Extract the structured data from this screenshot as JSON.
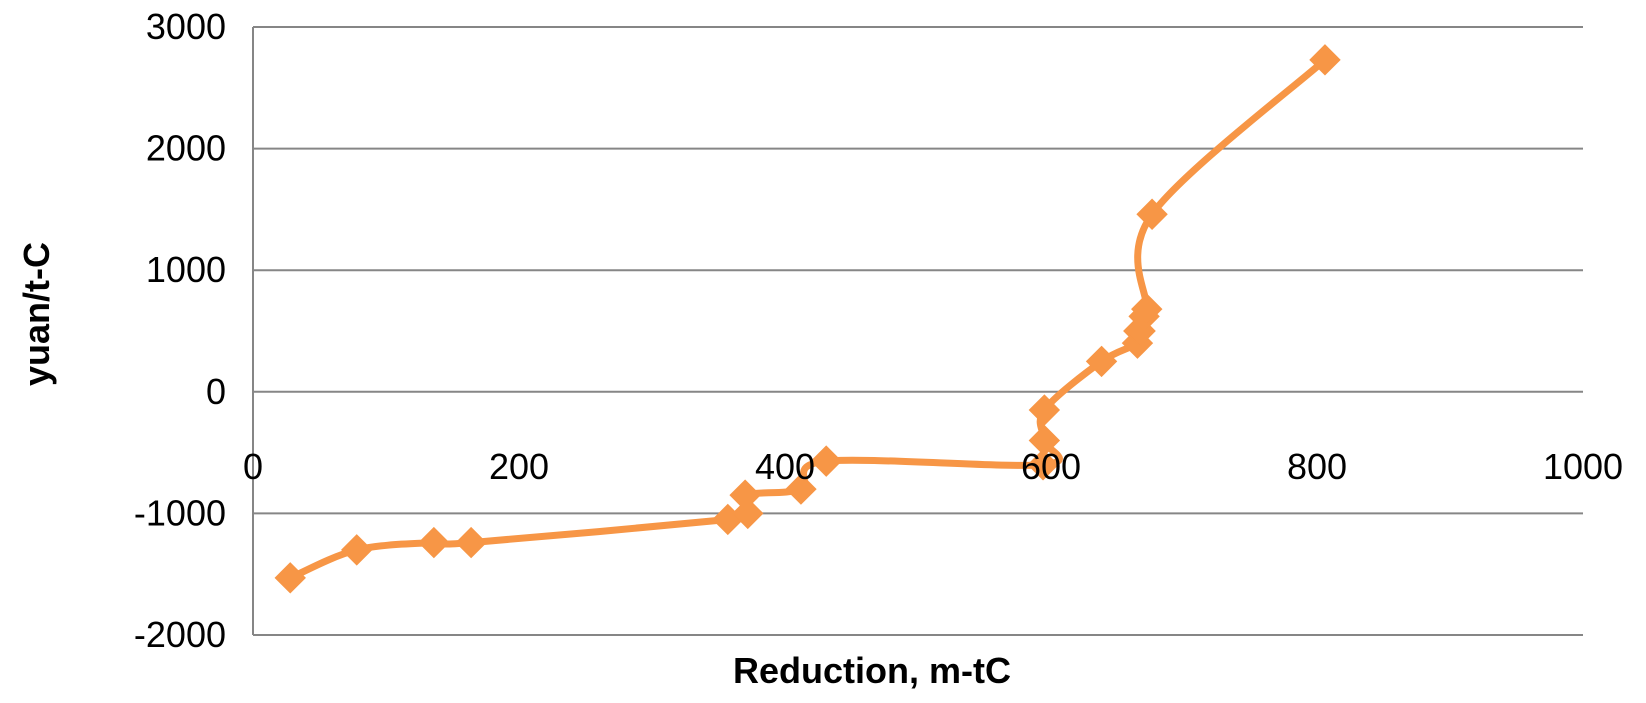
{
  "chart_data": {
    "type": "scatter",
    "title": "",
    "xlabel": "Reduction, m-tC",
    "ylabel": "yuan/t-C",
    "xlim": [
      0,
      1000
    ],
    "ylim": [
      -2000,
      3000
    ],
    "x_ticks": [
      "0",
      "200",
      "400",
      "600",
      "800",
      "1000"
    ],
    "y_ticks": [
      "3000",
      "2000",
      "1000",
      "0",
      "-1000",
      "-2000"
    ],
    "grid": "horizontal",
    "legend": "none",
    "line_style": "smoothed line with diamond markers",
    "series": [
      {
        "color": "#F79646",
        "x": [
          28,
          78,
          136,
          164,
          357,
          372,
          370,
          412,
          431,
          594,
          595,
          595,
          638,
          665,
          666,
          667,
          670,
          672,
          676,
          806
        ],
        "y": [
          -1530,
          -1300,
          -1240,
          -1240,
          -1050,
          -1000,
          -850,
          -800,
          -570,
          -600,
          -400,
          -150,
          250,
          400,
          500,
          500,
          620,
          680,
          1460,
          2730
        ]
      }
    ]
  }
}
